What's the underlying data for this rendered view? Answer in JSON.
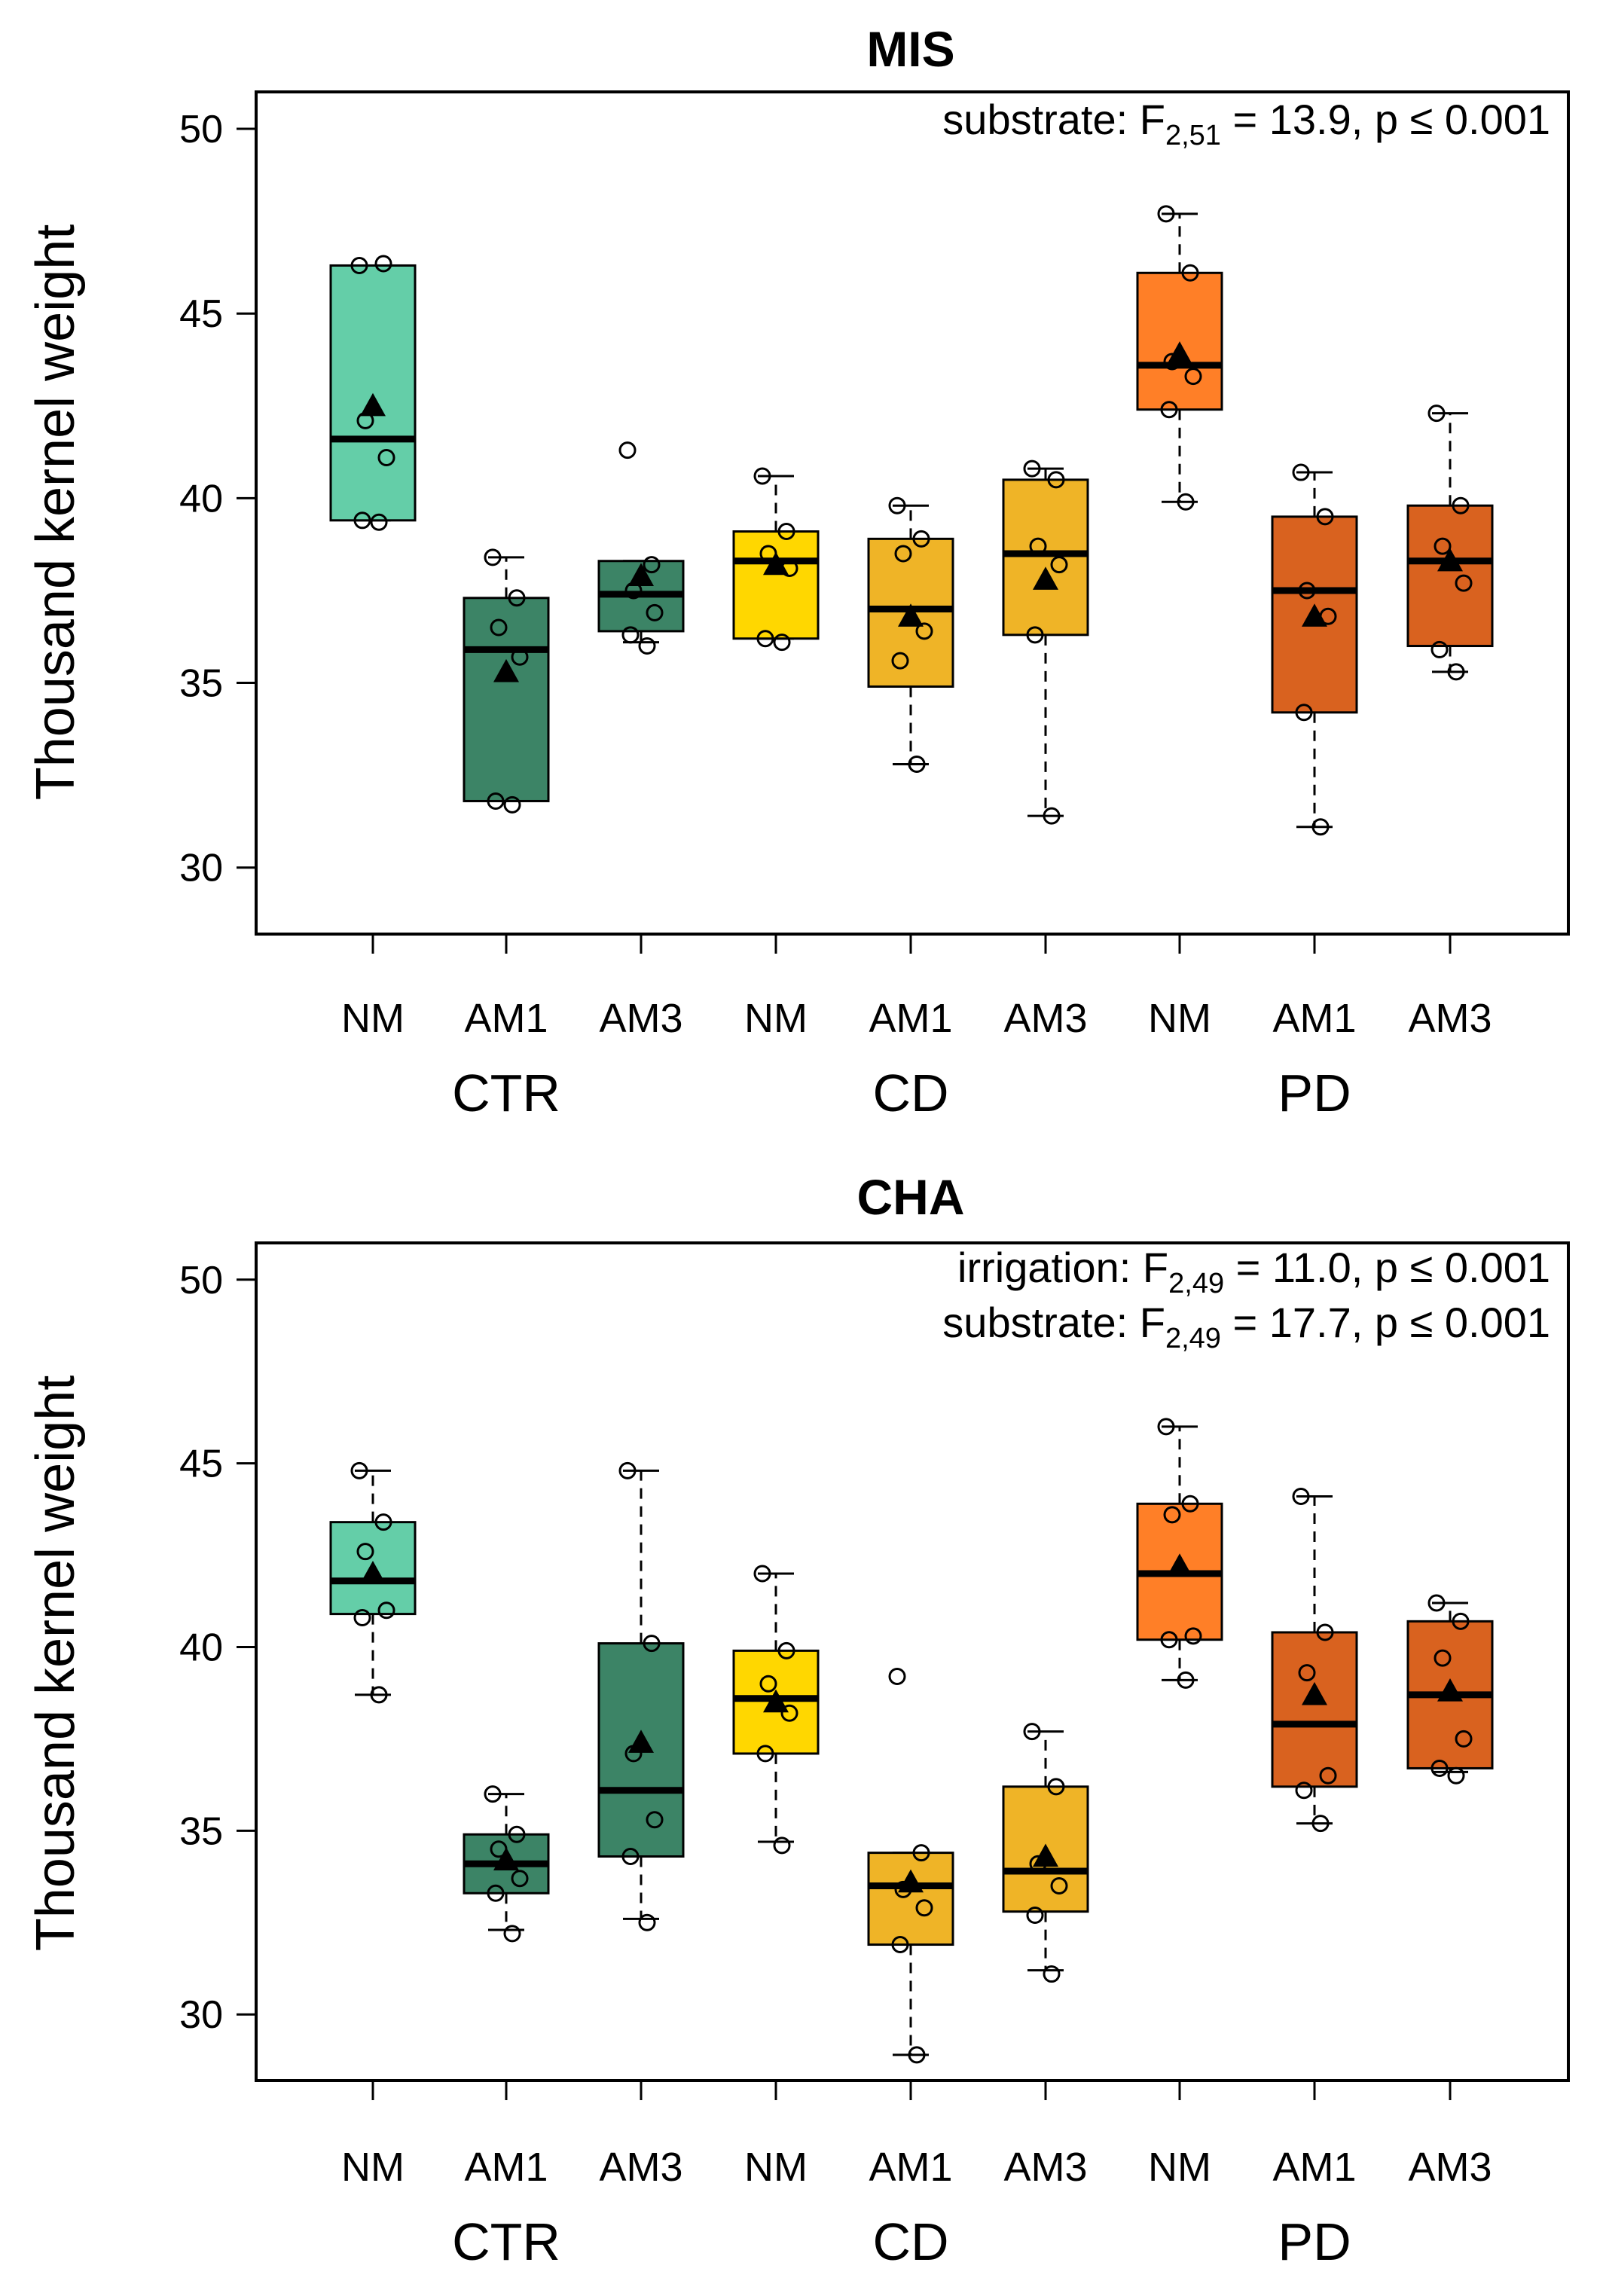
{
  "chart_data": [
    {
      "type": "boxplot",
      "title": "MIS",
      "ylabel": "Thousand kernel weight",
      "ylim": [
        28.2,
        51.0
      ],
      "yticks": [
        30,
        35,
        40,
        45,
        50
      ],
      "categories": [
        "NM",
        "AM1",
        "AM3",
        "NM",
        "AM1",
        "AM3",
        "NM",
        "AM1",
        "AM3"
      ],
      "groups": [
        "CTR",
        "CD",
        "PD"
      ],
      "annotation": [
        {
          "pre": "substrate: F",
          "sub": "2,51",
          "post": " = 13.9, p ≤ 0.001"
        }
      ],
      "boxes": [
        {
          "group": "CTR",
          "category": "NM",
          "color": "#64CEA8",
          "min": 39.4,
          "q1": 39.4,
          "median": 41.6,
          "q3": 46.3,
          "max": 46.3,
          "mean": 42.5,
          "points": [
            46.3,
            46.35,
            42.1,
            41.1,
            39.4,
            39.35
          ]
        },
        {
          "group": "CTR",
          "category": "AM1",
          "color": "#3C8466",
          "min": 31.8,
          "q1": 31.8,
          "median": 35.9,
          "q3": 37.3,
          "max": 38.4,
          "mean": 35.3,
          "points": [
            38.4,
            37.3,
            36.5,
            35.7,
            31.8,
            31.7
          ]
        },
        {
          "group": "CTR",
          "category": "AM3",
          "color": "#3C8466",
          "min": 36.1,
          "q1": 36.4,
          "median": 37.4,
          "q3": 38.3,
          "max": 38.3,
          "mean": 37.9,
          "points": [
            41.3,
            38.2,
            37.5,
            36.9,
            36.3,
            36.0
          ]
        },
        {
          "group": "CD",
          "category": "NM",
          "color": "#FFD700",
          "min": 36.2,
          "q1": 36.2,
          "median": 38.3,
          "q3": 39.1,
          "max": 40.6,
          "mean": 38.2,
          "points": [
            40.6,
            39.1,
            38.5,
            38.1,
            36.2,
            36.1
          ]
        },
        {
          "group": "CD",
          "category": "AM1",
          "color": "#EFB427",
          "min": 32.8,
          "q1": 34.9,
          "median": 37.0,
          "q3": 38.9,
          "max": 39.8,
          "mean": 36.8,
          "points": [
            39.8,
            38.9,
            38.5,
            36.4,
            35.6,
            32.8
          ]
        },
        {
          "group": "CD",
          "category": "AM3",
          "color": "#EFB427",
          "min": 31.4,
          "q1": 36.3,
          "median": 38.5,
          "q3": 40.5,
          "max": 40.8,
          "mean": 37.8,
          "points": [
            40.8,
            40.5,
            38.7,
            38.2,
            36.3,
            31.4
          ]
        },
        {
          "group": "PD",
          "category": "NM",
          "color": "#FF7F27",
          "min": 39.9,
          "q1": 42.4,
          "median": 43.6,
          "q3": 46.1,
          "max": 47.7,
          "mean": 43.9,
          "points": [
            47.7,
            46.1,
            43.7,
            43.3,
            42.4,
            39.9
          ]
        },
        {
          "group": "PD",
          "category": "AM1",
          "color": "#D9621F",
          "min": 31.1,
          "q1": 34.2,
          "median": 37.5,
          "q3": 39.5,
          "max": 40.7,
          "mean": 36.8,
          "points": [
            40.7,
            39.5,
            37.5,
            36.8,
            34.2,
            31.1
          ]
        },
        {
          "group": "PD",
          "category": "AM3",
          "color": "#D9621F",
          "min": 35.3,
          "q1": 36.0,
          "median": 38.3,
          "q3": 39.8,
          "max": 42.3,
          "mean": 38.3,
          "points": [
            42.3,
            39.8,
            38.7,
            37.7,
            35.9,
            35.3
          ]
        }
      ]
    },
    {
      "type": "boxplot",
      "title": "CHA",
      "ylabel": "Thousand kernel weight",
      "ylim": [
        28.2,
        51.0
      ],
      "yticks": [
        30,
        35,
        40,
        45,
        50
      ],
      "categories": [
        "NM",
        "AM1",
        "AM3",
        "NM",
        "AM1",
        "AM3",
        "NM",
        "AM1",
        "AM3"
      ],
      "groups": [
        "CTR",
        "CD",
        "PD"
      ],
      "annotation": [
        {
          "pre": "irrigation: F",
          "sub": "2,49",
          "post": " = 11.0, p ≤ 0.001"
        },
        {
          "pre": "substrate: F",
          "sub": "2,49",
          "post": " = 17.7, p ≤ 0.001"
        }
      ],
      "boxes": [
        {
          "group": "CTR",
          "category": "NM",
          "color": "#64CEA8",
          "min": 38.7,
          "q1": 40.9,
          "median": 41.8,
          "q3": 43.4,
          "max": 44.8,
          "mean": 42.0,
          "points": [
            44.8,
            43.4,
            42.6,
            41.0,
            40.8,
            38.7
          ]
        },
        {
          "group": "CTR",
          "category": "AM1",
          "color": "#3C8466",
          "min": 32.3,
          "q1": 33.3,
          "median": 34.1,
          "q3": 34.9,
          "max": 36.0,
          "mean": 34.2,
          "points": [
            36.0,
            34.9,
            34.5,
            33.7,
            33.3,
            32.2
          ]
        },
        {
          "group": "CTR",
          "category": "AM3",
          "color": "#3C8466",
          "min": 32.6,
          "q1": 34.3,
          "median": 36.1,
          "q3": 40.1,
          "max": 44.8,
          "mean": 37.4,
          "points": [
            44.8,
            40.1,
            37.1,
            35.3,
            34.3,
            32.5
          ]
        },
        {
          "group": "CD",
          "category": "NM",
          "color": "#FFD700",
          "min": 34.7,
          "q1": 37.1,
          "median": 38.6,
          "q3": 39.9,
          "max": 42.0,
          "mean": 38.5,
          "points": [
            42.0,
            39.9,
            39.0,
            38.2,
            37.1,
            34.6
          ]
        },
        {
          "group": "CD",
          "category": "AM1",
          "color": "#EFB427",
          "min": 28.9,
          "q1": 31.9,
          "median": 33.5,
          "q3": 34.4,
          "max": 34.4,
          "mean": 33.6,
          "points": [
            39.2,
            34.4,
            33.4,
            32.9,
            31.9,
            28.9
          ]
        },
        {
          "group": "CD",
          "category": "AM3",
          "color": "#EFB427",
          "min": 31.2,
          "q1": 32.8,
          "median": 33.9,
          "q3": 36.2,
          "max": 37.7,
          "mean": 34.3,
          "points": [
            37.7,
            36.2,
            34.1,
            33.5,
            32.7,
            31.1
          ]
        },
        {
          "group": "PD",
          "category": "NM",
          "color": "#FF7F27",
          "min": 39.1,
          "q1": 40.2,
          "median": 42.0,
          "q3": 43.9,
          "max": 46.0,
          "mean": 42.2,
          "points": [
            46.0,
            43.9,
            43.6,
            40.3,
            40.2,
            39.1
          ]
        },
        {
          "group": "PD",
          "category": "AM1",
          "color": "#D9621F",
          "min": 35.2,
          "q1": 36.2,
          "median": 37.9,
          "q3": 40.4,
          "max": 44.1,
          "mean": 38.7,
          "points": [
            44.1,
            40.4,
            39.3,
            36.5,
            36.1,
            35.2
          ]
        },
        {
          "group": "PD",
          "category": "AM3",
          "color": "#D9621F",
          "min": 36.6,
          "q1": 36.7,
          "median": 38.7,
          "q3": 40.7,
          "max": 41.2,
          "mean": 38.8,
          "points": [
            41.2,
            40.7,
            39.7,
            37.5,
            36.7,
            36.5
          ]
        }
      ]
    }
  ]
}
